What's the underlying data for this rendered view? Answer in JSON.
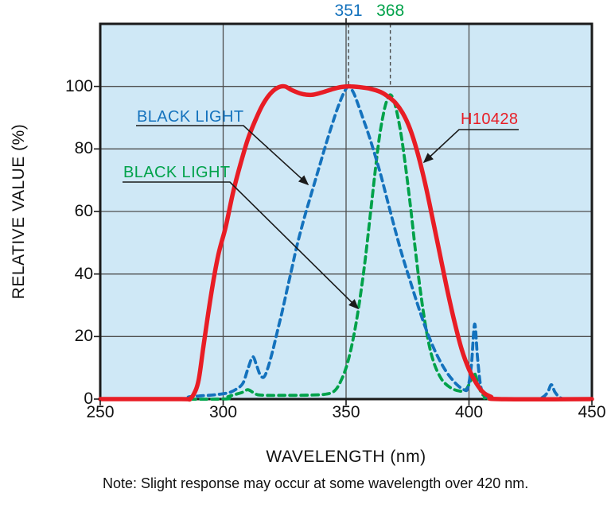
{
  "chart_data": {
    "type": "line",
    "title": "",
    "xlabel": "WAVELENGTH (nm)",
    "ylabel": "RELATIVE VALUE (%)",
    "xlim": [
      250,
      450
    ],
    "ylim": [
      0,
      120
    ],
    "x_ticks": [
      250,
      300,
      350,
      400,
      450
    ],
    "y_ticks": [
      0,
      20,
      40,
      60,
      80,
      100
    ],
    "grid": true,
    "legend_position": "inline-annotations",
    "plot_background": "#cfe8f6",
    "grid_color": "#4d4d4d",
    "border_color": "#1a1a1a",
    "marker_lines": [
      {
        "label": "351",
        "x_nm": 351,
        "color": "#1472bd"
      },
      {
        "label": "368",
        "x_nm": 368,
        "color": "#00a24a"
      }
    ],
    "annotations": [
      {
        "id": "blacklight-blue-label",
        "text": "BLACK LIGHT",
        "color": "#1472bd",
        "points_to": "blue dashed curve"
      },
      {
        "id": "blacklight-green-label",
        "text": "BLACK LIGHT",
        "color": "#00a24a",
        "points_to": "green dashed curve"
      },
      {
        "id": "h10428-label",
        "text": "H10428",
        "color": "#e81d25",
        "points_to": "red solid curve"
      }
    ],
    "series": [
      {
        "id": "h10428",
        "name": "H10428",
        "color": "#e81d25",
        "line_style": "solid",
        "points": [
          [
            250,
            0
          ],
          [
            283,
            0
          ],
          [
            286,
            0
          ],
          [
            288,
            1.5
          ],
          [
            290,
            6
          ],
          [
            292,
            17
          ],
          [
            295,
            33
          ],
          [
            298,
            46
          ],
          [
            301,
            55
          ],
          [
            304,
            66
          ],
          [
            307,
            75
          ],
          [
            310,
            83
          ],
          [
            313,
            89
          ],
          [
            316,
            94
          ],
          [
            319,
            97.5
          ],
          [
            322,
            99.5
          ],
          [
            325,
            100
          ],
          [
            328,
            98.8
          ],
          [
            332,
            97.6
          ],
          [
            336,
            97.3
          ],
          [
            340,
            98
          ],
          [
            344,
            99
          ],
          [
            348,
            99.8
          ],
          [
            352,
            100
          ],
          [
            356,
            99.7
          ],
          [
            360,
            99.2
          ],
          [
            364,
            98.2
          ],
          [
            367,
            96.8
          ],
          [
            370,
            94.8
          ],
          [
            373,
            91.5
          ],
          [
            376,
            86.5
          ],
          [
            379,
            79
          ],
          [
            382,
            69.5
          ],
          [
            385,
            58.5
          ],
          [
            388,
            47
          ],
          [
            391,
            35.5
          ],
          [
            394,
            25
          ],
          [
            397,
            16
          ],
          [
            400,
            9.5
          ],
          [
            403,
            5
          ],
          [
            406,
            2
          ],
          [
            409,
            0.7
          ],
          [
            412,
            0
          ],
          [
            450,
            0
          ]
        ]
      },
      {
        "id": "blacklight-blue",
        "name": "BLACK LIGHT",
        "color": "#1472bd",
        "line_style": "dashed",
        "points": [
          [
            250,
            0
          ],
          [
            283,
            0
          ],
          [
            286,
            0.7
          ],
          [
            290,
            1
          ],
          [
            294,
            1.2
          ],
          [
            298,
            1.5
          ],
          [
            302,
            2
          ],
          [
            305,
            3
          ],
          [
            308,
            5
          ],
          [
            310,
            9.5
          ],
          [
            312,
            13.5
          ],
          [
            313.5,
            11
          ],
          [
            315,
            7.8
          ],
          [
            316.5,
            7
          ],
          [
            318,
            9.5
          ],
          [
            320,
            15
          ],
          [
            322,
            21.5
          ],
          [
            324,
            28
          ],
          [
            326,
            35
          ],
          [
            328,
            42
          ],
          [
            330,
            49
          ],
          [
            333,
            58
          ],
          [
            336,
            66
          ],
          [
            339,
            74
          ],
          [
            342,
            82
          ],
          [
            345,
            89.5
          ],
          [
            347,
            94
          ],
          [
            349,
            97.8
          ],
          [
            351,
            100
          ],
          [
            353,
            98
          ],
          [
            355,
            94
          ],
          [
            357,
            89.5
          ],
          [
            359,
            85
          ],
          [
            361,
            80
          ],
          [
            364,
            72
          ],
          [
            367,
            63
          ],
          [
            370,
            54
          ],
          [
            373,
            45.5
          ],
          [
            376,
            38
          ],
          [
            379,
            30.5
          ],
          [
            382,
            23.5
          ],
          [
            385,
            17.5
          ],
          [
            388,
            12.5
          ],
          [
            391,
            8.5
          ],
          [
            394,
            5.5
          ],
          [
            396,
            4
          ],
          [
            398,
            3
          ],
          [
            399.5,
            3.5
          ],
          [
            401,
            11
          ],
          [
            402.3,
            24
          ],
          [
            403.5,
            13
          ],
          [
            404.8,
            4
          ],
          [
            406.5,
            1.2
          ],
          [
            409,
            0.4
          ],
          [
            413,
            0
          ],
          [
            427,
            0
          ],
          [
            430,
            0.6
          ],
          [
            432,
            2.2
          ],
          [
            433.5,
            4.6
          ],
          [
            435,
            2.2
          ],
          [
            437,
            0.5
          ],
          [
            440,
            0
          ],
          [
            450,
            0
          ]
        ]
      },
      {
        "id": "blacklight-green",
        "name": "BLACK LIGHT",
        "color": "#00a24a",
        "line_style": "dashed",
        "points": [
          [
            250,
            0
          ],
          [
            299,
            0
          ],
          [
            302,
            0.8
          ],
          [
            305,
            1.5
          ],
          [
            308,
            2.2
          ],
          [
            310,
            3
          ],
          [
            312,
            2.2
          ],
          [
            314,
            1.4
          ],
          [
            318,
            1.2
          ],
          [
            324,
            1.2
          ],
          [
            330,
            1.2
          ],
          [
            336,
            1.3
          ],
          [
            341,
            1.5
          ],
          [
            344,
            2
          ],
          [
            346,
            3.2
          ],
          [
            348,
            6
          ],
          [
            350,
            10
          ],
          [
            352,
            16
          ],
          [
            354,
            24
          ],
          [
            356,
            34
          ],
          [
            358,
            46
          ],
          [
            360,
            60
          ],
          [
            362,
            74
          ],
          [
            363.5,
            83.5
          ],
          [
            365,
            90.5
          ],
          [
            366.5,
            95.3
          ],
          [
            368,
            97.3
          ],
          [
            369.5,
            95.3
          ],
          [
            371,
            90.5
          ],
          [
            372.5,
            84
          ],
          [
            374,
            75.5
          ],
          [
            376,
            63
          ],
          [
            378,
            49
          ],
          [
            380,
            36
          ],
          [
            382,
            25
          ],
          [
            384,
            16.5
          ],
          [
            386,
            11
          ],
          [
            388,
            7.5
          ],
          [
            390,
            5.2
          ],
          [
            393,
            3.4
          ],
          [
            396,
            2.6
          ],
          [
            398.5,
            2.8
          ],
          [
            400.5,
            5.5
          ],
          [
            402,
            8.5
          ],
          [
            403.5,
            5.5
          ],
          [
            405,
            2
          ],
          [
            407,
            0.7
          ],
          [
            410,
            0
          ],
          [
            450,
            0
          ]
        ]
      }
    ],
    "note": "Note: Slight response may occur at some wavelength over 420 nm."
  }
}
